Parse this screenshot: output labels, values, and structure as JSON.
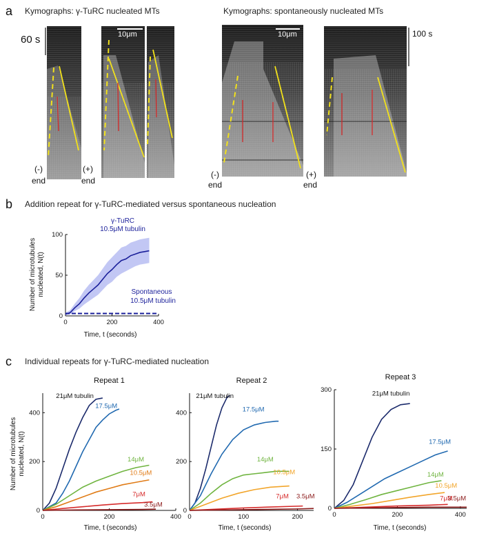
{
  "panel_a": {
    "letter": "a",
    "title_left": "Kymographs: γ-TuRC nucleated MTs",
    "title_right": "Kymographs: spontaneously nucleated MTs",
    "time_bar_left": "60 s",
    "time_bar_right": "100 s",
    "scale_bar_1": "10μm",
    "scale_bar_2": "10μm",
    "minus_end_1": "(-)",
    "minus_end_1b": "end",
    "plus_end_1": "(+)",
    "plus_end_1b": "end",
    "minus_end_2": "(-)",
    "minus_end_2b": "end",
    "plus_end_2": "(+)",
    "plus_end_2b": "end",
    "colors": {
      "growth_line": "#f2e11b",
      "dashed_line": "#f2e11b",
      "red_line": "#d42a2a"
    }
  },
  "panel_b": {
    "letter": "b",
    "title": "Addition repeat for γ-TuRC-mediated versus spontaneous nucleation",
    "annot_turc_1": "γ-TuRC",
    "annot_turc_2": "10.5μM tubulin",
    "annot_spon_1": "Spontaneous",
    "annot_spon_2": "10.5μM tubulin",
    "ylabel_1": "Number of microtubules",
    "ylabel_2": "nucleated, N(t)",
    "xlabel": "Time, t (seconds)",
    "colors": {
      "series": "#1a1f9a",
      "band": "#b7bdf2"
    }
  },
  "panel_c": {
    "letter": "c",
    "title": "Individual repeats for γ-TuRC-mediated nucleation",
    "ylabel_1": "Number of microtubules",
    "ylabel_2": "nucleated, N(t)",
    "xlabel": "Time, t (seconds)"
  },
  "chart_data": [
    {
      "type": "line",
      "id": "b",
      "xlabel": "Time, t (seconds)",
      "ylabel": "Number of microtubules nucleated, N(t)",
      "xlim": [
        0,
        400
      ],
      "ylim": [
        0,
        100
      ],
      "xticks": [
        0,
        200,
        400
      ],
      "yticks": [
        0,
        50,
        100
      ],
      "series": [
        {
          "name": "γ-TuRC 10.5μM tubulin",
          "style": "solid",
          "x": [
            0,
            20,
            40,
            60,
            80,
            100,
            120,
            140,
            160,
            180,
            200,
            220,
            240,
            260,
            280,
            300,
            320,
            340,
            360
          ],
          "y": [
            2,
            4,
            10,
            15,
            22,
            28,
            33,
            38,
            45,
            52,
            57,
            63,
            68,
            70,
            74,
            76,
            78,
            79,
            80
          ],
          "lower": [
            1,
            2,
            6,
            9,
            14,
            18,
            22,
            26,
            32,
            38,
            42,
            48,
            52,
            55,
            58,
            61,
            63,
            64,
            65
          ],
          "upper": [
            4,
            7,
            15,
            22,
            31,
            38,
            44,
            50,
            58,
            66,
            72,
            78,
            84,
            86,
            90,
            92,
            94,
            95,
            96
          ]
        },
        {
          "name": "Spontaneous 10.5μM tubulin",
          "style": "dashed",
          "x": [
            0,
            100,
            200,
            300,
            400
          ],
          "y": [
            3,
            3,
            3,
            3,
            3
          ]
        }
      ]
    },
    {
      "type": "line",
      "id": "c1",
      "title": "Repeat 1",
      "xlabel": "Time, t (seconds)",
      "xlim": [
        0,
        400
      ],
      "ylim": [
        0,
        480
      ],
      "xticks": [
        0,
        200,
        400
      ],
      "yticks": [
        0,
        200,
        400
      ],
      "series": [
        {
          "name": "21μM tubulin",
          "color": "#1b2a6b",
          "label_x": 40,
          "label_y": 460,
          "x": [
            0,
            20,
            40,
            60,
            80,
            100,
            120,
            140,
            160,
            180
          ],
          "y": [
            0,
            30,
            90,
            170,
            250,
            320,
            380,
            430,
            455,
            460
          ]
        },
        {
          "name": "17.5μM",
          "color": "#2069b0",
          "label_x": 158,
          "label_y": 420,
          "x": [
            0,
            40,
            60,
            80,
            100,
            120,
            140,
            160,
            180,
            200,
            220,
            230
          ],
          "y": [
            0,
            30,
            70,
            120,
            180,
            240,
            290,
            340,
            370,
            395,
            410,
            415
          ]
        },
        {
          "name": "14μM",
          "color": "#6fb43f",
          "label_x": 255,
          "label_y": 200,
          "x": [
            0,
            40,
            80,
            120,
            160,
            200,
            240,
            280,
            320
          ],
          "y": [
            0,
            25,
            60,
            95,
            120,
            140,
            160,
            175,
            185
          ]
        },
        {
          "name": "10.5μM",
          "color": "#e07b16",
          "label_x": 262,
          "label_y": 145,
          "x": [
            0,
            40,
            80,
            120,
            160,
            200,
            240,
            280,
            320
          ],
          "y": [
            0,
            15,
            35,
            55,
            75,
            90,
            105,
            115,
            125
          ]
        },
        {
          "name": "7μM",
          "color": "#d62a2a",
          "label_x": 270,
          "label_y": 58,
          "x": [
            0,
            60,
            120,
            180,
            240,
            300,
            330
          ],
          "y": [
            0,
            8,
            15,
            22,
            28,
            32,
            35
          ]
        },
        {
          "name": "3.5μM",
          "color": "#8b1a1a",
          "label_x": 305,
          "label_y": 15,
          "x": [
            0,
            100,
            200,
            300,
            340
          ],
          "y": [
            0,
            2,
            3,
            4,
            5
          ]
        }
      ]
    },
    {
      "type": "line",
      "id": "c2",
      "title": "Repeat 2",
      "xlabel": "Time, t (seconds)",
      "xlim": [
        0,
        230
      ],
      "ylim": [
        0,
        480
      ],
      "xticks": [
        0,
        100,
        200
      ],
      "yticks": [
        0,
        200,
        400
      ],
      "series": [
        {
          "name": "21μM tubulin",
          "color": "#1b2a6b",
          "label_x": 12,
          "label_y": 460,
          "x": [
            0,
            10,
            20,
            30,
            40,
            50,
            60,
            70,
            75
          ],
          "y": [
            0,
            30,
            90,
            170,
            260,
            350,
            420,
            465,
            470
          ]
        },
        {
          "name": "17.5μM",
          "color": "#2069b0",
          "label_x": 98,
          "label_y": 405,
          "x": [
            0,
            20,
            40,
            60,
            80,
            100,
            120,
            140,
            160,
            165
          ],
          "y": [
            0,
            60,
            150,
            230,
            290,
            330,
            350,
            360,
            365,
            365
          ]
        },
        {
          "name": "14μM",
          "color": "#6fb43f",
          "label_x": 125,
          "label_y": 200,
          "x": [
            0,
            20,
            40,
            60,
            80,
            100,
            120,
            140,
            160,
            185
          ],
          "y": [
            0,
            30,
            70,
            105,
            130,
            145,
            150,
            155,
            160,
            160
          ]
        },
        {
          "name": "10.5μM",
          "color": "#f2a52a",
          "label_x": 155,
          "label_y": 148,
          "x": [
            0,
            30,
            60,
            90,
            120,
            150,
            185
          ],
          "y": [
            0,
            25,
            50,
            70,
            85,
            95,
            100
          ]
        },
        {
          "name": "7μM",
          "color": "#d62a2a",
          "label_x": 160,
          "label_y": 50,
          "x": [
            0,
            50,
            100,
            150,
            210
          ],
          "y": [
            0,
            5,
            10,
            14,
            18
          ]
        },
        {
          "name": "3.5μM",
          "color": "#8b1a1a",
          "label_x": 198,
          "label_y": 50,
          "x": [
            0,
            100,
            200,
            230
          ],
          "y": [
            0,
            3,
            6,
            8
          ]
        }
      ]
    },
    {
      "type": "line",
      "id": "c3",
      "title": "Repeat 3",
      "xlabel": "Time, t (seconds)",
      "xlim": [
        0,
        420
      ],
      "ylim": [
        0,
        300
      ],
      "xticks": [
        0,
        200,
        400
      ],
      "yticks": [
        0,
        150,
        300
      ],
      "series": [
        {
          "name": "21μM tubulin",
          "color": "#1b2a6b",
          "label_x": 120,
          "label_y": 285,
          "x": [
            0,
            30,
            60,
            90,
            120,
            150,
            180,
            210,
            240
          ],
          "y": [
            0,
            20,
            60,
            120,
            180,
            225,
            250,
            262,
            265
          ]
        },
        {
          "name": "17.5μM",
          "color": "#2069b0",
          "label_x": 300,
          "label_y": 163,
          "x": [
            0,
            40,
            80,
            120,
            160,
            200,
            240,
            280,
            320,
            360
          ],
          "y": [
            0,
            15,
            35,
            55,
            75,
            90,
            105,
            120,
            135,
            145
          ]
        },
        {
          "name": "14μM",
          "color": "#6fb43f",
          "label_x": 295,
          "label_y": 80,
          "x": [
            0,
            50,
            100,
            150,
            200,
            250,
            300,
            340
          ],
          "y": [
            0,
            10,
            22,
            35,
            45,
            55,
            65,
            70
          ]
        },
        {
          "name": "10.5μM",
          "color": "#f2a52a",
          "label_x": 320,
          "label_y": 52,
          "x": [
            0,
            60,
            120,
            180,
            240,
            300,
            350
          ],
          "y": [
            0,
            6,
            12,
            20,
            28,
            35,
            40
          ]
        },
        {
          "name": "7μM",
          "color": "#d62a2a",
          "label_x": 335,
          "label_y": 20,
          "x": [
            0,
            100,
            200,
            300,
            360
          ],
          "y": [
            0,
            3,
            6,
            8,
            10
          ]
        },
        {
          "name": "3.5μM",
          "color": "#8b1a1a",
          "label_x": 360,
          "label_y": 20,
          "x": [
            0,
            100,
            200,
            300,
            420
          ],
          "y": [
            0,
            1,
            2,
            3,
            3
          ]
        }
      ]
    }
  ]
}
